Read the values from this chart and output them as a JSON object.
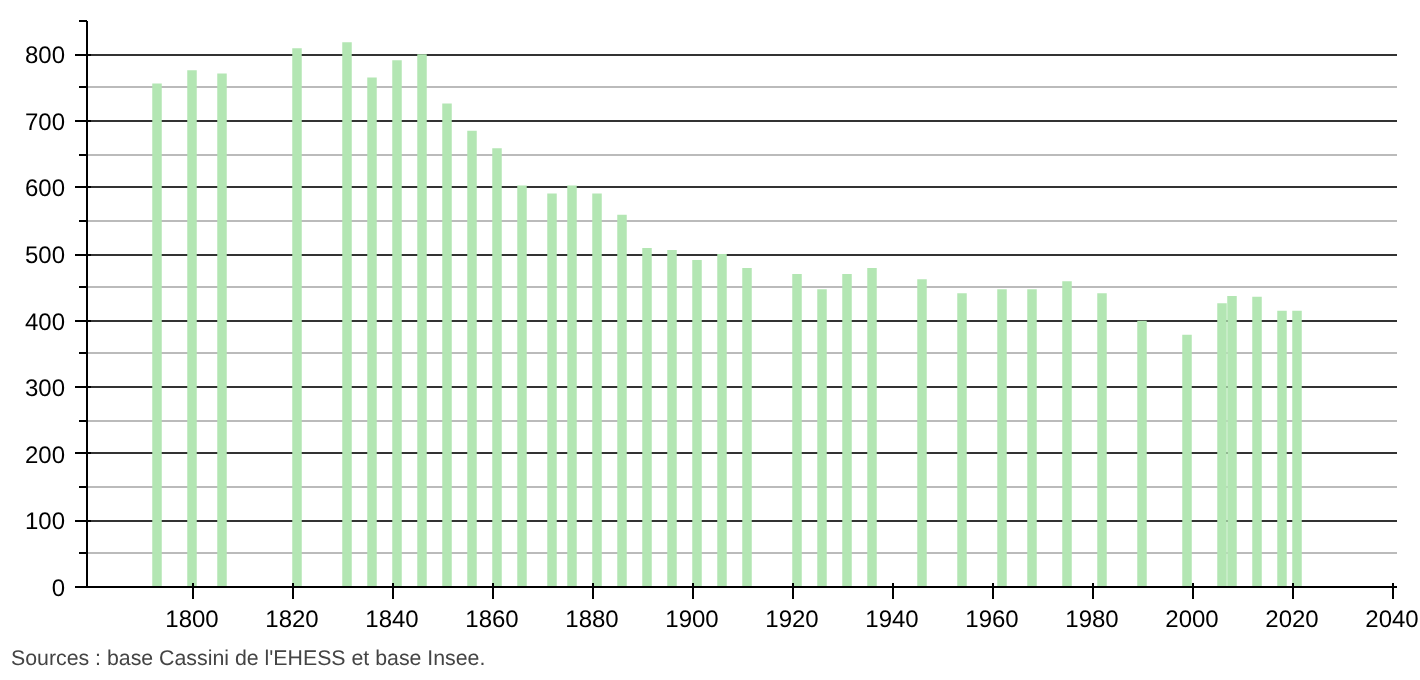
{
  "chart_data": {
    "type": "bar",
    "x": [
      1793,
      1800,
      1806,
      1821,
      1831,
      1836,
      1841,
      1846,
      1851,
      1856,
      1861,
      1866,
      1872,
      1876,
      1881,
      1886,
      1891,
      1896,
      1901,
      1906,
      1911,
      1921,
      1926,
      1931,
      1936,
      1946,
      1954,
      1962,
      1968,
      1975,
      1982,
      1990,
      1999,
      2006,
      2008,
      2013,
      2018,
      2021
    ],
    "values": [
      756,
      776,
      771,
      809,
      818,
      765,
      791,
      800,
      726,
      685,
      659,
      603,
      591,
      603,
      591,
      559,
      509,
      506,
      491,
      500,
      479,
      470,
      447,
      470,
      479,
      462,
      441,
      447,
      447,
      459,
      441,
      400,
      379,
      426,
      437,
      436,
      415,
      415
    ],
    "color": "#b3e6b3",
    "xlim": [
      1779,
      2041
    ],
    "xticks": [
      1800,
      1820,
      1840,
      1860,
      1880,
      1900,
      1920,
      1940,
      1960,
      1980,
      2000,
      2020,
      2040
    ],
    "ylim": [
      0,
      850
    ],
    "yticks": [
      0,
      100,
      200,
      300,
      400,
      500,
      600,
      700,
      800
    ],
    "grid": "y",
    "annotations": [
      "Sources : base Cassini de l'EHESS et base Insee."
    ]
  }
}
